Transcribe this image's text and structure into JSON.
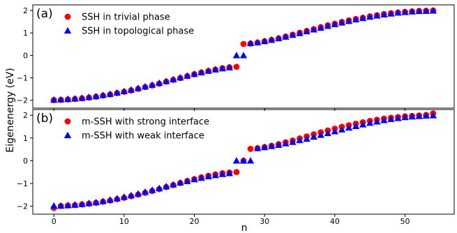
{
  "figure": {
    "ylabel": "Eigenenergy (eV)",
    "xlabel": "n"
  },
  "colors": {
    "circle": "#ff0000",
    "triangle": "#0000ff",
    "frame": "#000000"
  },
  "chart_data": [
    {
      "type": "scatter",
      "panel_label": "(a)",
      "xlabel": "",
      "ylabel": "Eigenenergy (eV)",
      "xlim": [
        -3,
        57
      ],
      "ylim": [
        -2.35,
        2.25
      ],
      "xticks": [
        0,
        10,
        20,
        30,
        40,
        50
      ],
      "yticks": [
        -2,
        -1,
        0,
        1,
        2
      ],
      "ytick_labels": [
        "−2",
        "−1",
        "0",
        "1",
        "2"
      ],
      "legend_position": "top-left",
      "series": [
        {
          "name": "SSH in trivial phase",
          "marker": "circle",
          "x": [
            0,
            1,
            2,
            3,
            4,
            5,
            6,
            7,
            8,
            9,
            10,
            11,
            12,
            13,
            14,
            15,
            16,
            17,
            18,
            19,
            20,
            21,
            22,
            23,
            24,
            25,
            26,
            27,
            28,
            29,
            30,
            31,
            32,
            33,
            34,
            35,
            36,
            37,
            38,
            39,
            40,
            41,
            42,
            43,
            44,
            45,
            46,
            47,
            48,
            49,
            50,
            51,
            52,
            53,
            54
          ],
          "y": [
            -1.99,
            -1.98,
            -1.96,
            -1.94,
            -1.91,
            -1.88,
            -1.84,
            -1.79,
            -1.74,
            -1.68,
            -1.62,
            -1.56,
            -1.49,
            -1.41,
            -1.34,
            -1.26,
            -1.17,
            -1.09,
            -1.01,
            -0.92,
            -0.84,
            -0.76,
            -0.69,
            -0.63,
            -0.57,
            -0.53,
            -0.51,
            0.51,
            0.53,
            0.57,
            0.63,
            0.69,
            0.76,
            0.84,
            0.92,
            1.01,
            1.09,
            1.17,
            1.26,
            1.34,
            1.41,
            1.49,
            1.56,
            1.62,
            1.68,
            1.74,
            1.79,
            1.84,
            1.88,
            1.91,
            1.94,
            1.96,
            1.98,
            1.99,
            2.0
          ]
        },
        {
          "name": "SSH in topological phase",
          "marker": "triangle",
          "x": [
            0,
            1,
            2,
            3,
            4,
            5,
            6,
            7,
            8,
            9,
            10,
            11,
            12,
            13,
            14,
            15,
            16,
            17,
            18,
            19,
            20,
            21,
            22,
            23,
            24,
            25,
            26,
            27,
            28,
            29,
            30,
            31,
            32,
            33,
            34,
            35,
            36,
            37,
            38,
            39,
            40,
            41,
            42,
            43,
            44,
            45,
            46,
            47,
            48,
            49,
            50,
            51,
            52,
            53,
            54
          ],
          "y": [
            -1.98,
            -1.97,
            -1.95,
            -1.93,
            -1.9,
            -1.86,
            -1.82,
            -1.77,
            -1.72,
            -1.66,
            -1.6,
            -1.53,
            -1.46,
            -1.39,
            -1.31,
            -1.23,
            -1.15,
            -1.07,
            -0.99,
            -0.91,
            -0.83,
            -0.76,
            -0.69,
            -0.63,
            -0.58,
            -0.54,
            0.0,
            0.0,
            0.54,
            0.58,
            0.63,
            0.69,
            0.76,
            0.83,
            0.91,
            0.99,
            1.07,
            1.15,
            1.23,
            1.31,
            1.39,
            1.46,
            1.53,
            1.6,
            1.66,
            1.72,
            1.77,
            1.82,
            1.86,
            1.9,
            1.93,
            1.95,
            1.97,
            1.98,
            1.99
          ]
        }
      ]
    },
    {
      "type": "scatter",
      "panel_label": "(b)",
      "xlabel": "n",
      "ylabel": "Eigenenergy (eV)",
      "xlim": [
        -3,
        57
      ],
      "ylim": [
        -2.35,
        2.25
      ],
      "xticks": [
        0,
        10,
        20,
        30,
        40,
        50
      ],
      "yticks": [
        -2,
        -1,
        0,
        1,
        2
      ],
      "ytick_labels": [
        "−2",
        "−1",
        "0",
        "1",
        "2"
      ],
      "legend_position": "top-left",
      "series": [
        {
          "name": "m-SSH with strong interface",
          "marker": "circle",
          "x": [
            0,
            1,
            2,
            3,
            4,
            5,
            6,
            7,
            8,
            9,
            10,
            11,
            12,
            13,
            14,
            15,
            16,
            17,
            18,
            19,
            20,
            21,
            22,
            23,
            24,
            25,
            26,
            27,
            28,
            29,
            30,
            31,
            32,
            33,
            34,
            35,
            36,
            37,
            38,
            39,
            40,
            41,
            42,
            43,
            44,
            45,
            46,
            47,
            48,
            49,
            50,
            51,
            52,
            53,
            54
          ],
          "y": [
            -2.08,
            -1.99,
            -1.97,
            -1.95,
            -1.92,
            -1.89,
            -1.85,
            -1.8,
            -1.75,
            -1.69,
            -1.63,
            -1.56,
            -1.49,
            -1.41,
            -1.33,
            -1.25,
            -1.16,
            -1.07,
            -0.98,
            -0.89,
            -0.81,
            -0.73,
            -0.66,
            -0.6,
            -0.55,
            -0.52,
            -0.5,
            0.0,
            0.52,
            0.55,
            0.6,
            0.66,
            0.73,
            0.81,
            0.89,
            0.98,
            1.07,
            1.16,
            1.25,
            1.33,
            1.41,
            1.49,
            1.56,
            1.63,
            1.69,
            1.75,
            1.8,
            1.85,
            1.89,
            1.92,
            1.95,
            1.97,
            1.99,
            2.01,
            2.08
          ]
        },
        {
          "name": "m-SSH with weak interface",
          "marker": "triangle",
          "x": [
            0,
            1,
            2,
            3,
            4,
            5,
            6,
            7,
            8,
            9,
            10,
            11,
            12,
            13,
            14,
            15,
            16,
            17,
            18,
            19,
            20,
            21,
            22,
            23,
            24,
            25,
            26,
            27,
            28,
            29,
            30,
            31,
            32,
            33,
            34,
            35,
            36,
            37,
            38,
            39,
            40,
            41,
            42,
            43,
            44,
            45,
            46,
            47,
            48,
            49,
            50,
            51,
            52,
            53,
            54
          ],
          "y": [
            -1.98,
            -1.98,
            -1.96,
            -1.94,
            -1.91,
            -1.87,
            -1.83,
            -1.78,
            -1.72,
            -1.66,
            -1.59,
            -1.52,
            -1.45,
            -1.37,
            -1.29,
            -1.21,
            -1.13,
            -1.05,
            -0.96,
            -0.9,
            -0.82,
            -0.76,
            -0.69,
            -0.64,
            -0.59,
            -0.55,
            0.0,
            0.0,
            0.0,
            0.55,
            0.59,
            0.64,
            0.69,
            0.76,
            0.82,
            0.9,
            0.96,
            1.05,
            1.13,
            1.21,
            1.29,
            1.37,
            1.45,
            1.52,
            1.59,
            1.66,
            1.72,
            1.78,
            1.83,
            1.87,
            1.91,
            1.94,
            1.96,
            1.98,
            1.99
          ]
        }
      ]
    }
  ]
}
